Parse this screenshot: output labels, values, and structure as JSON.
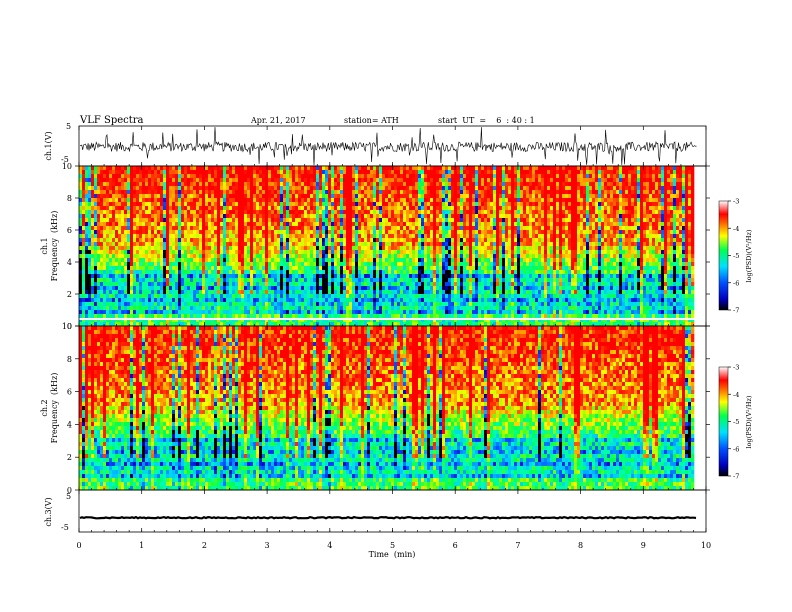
{
  "header": {
    "title": "VLF  Spectra",
    "date": "Apr. 21, 2017",
    "station": "station= ATH",
    "start_ut": "start  UT  =    6  : 40 : 1"
  },
  "chart_data": [
    {
      "type": "line",
      "panel": "ch1-waveform",
      "ylabel": "ch.1(V)",
      "ylim": [
        -5,
        5
      ],
      "yticks": [
        "5",
        "-5"
      ],
      "xlim": [
        0,
        10
      ],
      "x_data_end": 9.85,
      "series": [
        {
          "values_note_free": true,
          "mean": -0.2,
          "spread": 1.2,
          "spike_max": 4.8
        }
      ]
    },
    {
      "type": "heatmap",
      "panel": "ch1-spectrogram",
      "ylabel": "ch.1\nFrequency  (kHz)",
      "ylabel_line1": "ch.1",
      "ylabel_line2": "Frequency  (kHz)",
      "ylim": [
        0,
        10
      ],
      "yticks": [
        "0",
        "2",
        "4",
        "6",
        "8",
        "10"
      ],
      "xlim": [
        0,
        10
      ],
      "x_data_end": 9.85,
      "colorbar": {
        "label": "log(PSD)(V²/Hz)",
        "range": [
          -7,
          -3
        ],
        "ticks": [
          "-3",
          "-4",
          "-5",
          "-6",
          "-7"
        ],
        "colors": [
          "#000000",
          "#0000ff",
          "#00c8ff",
          "#00ff64",
          "#ffff00",
          "#ff0000",
          "#ffffff"
        ]
      }
    },
    {
      "type": "heatmap",
      "panel": "ch2-spectrogram",
      "ylabel_line1": "ch.2",
      "ylabel_line2": "Frequency  (kHz)",
      "ylim": [
        0,
        10
      ],
      "yticks": [
        "0",
        "2",
        "4",
        "6",
        "8",
        "10"
      ],
      "xlim": [
        0,
        10
      ],
      "x_data_end": 9.85,
      "colorbar": {
        "label": "log(PSD)(V²/Hz)",
        "range": [
          -7,
          -3
        ],
        "ticks": [
          "-3",
          "-4",
          "-5",
          "-6",
          "-7"
        ]
      }
    },
    {
      "type": "line",
      "panel": "ch3-waveform",
      "ylabel": "ch.3(V)",
      "ylim": [
        -5,
        5
      ],
      "yticks": [
        "5",
        "-5"
      ],
      "xlim": [
        0,
        10
      ],
      "x_data_end": 9.85,
      "series": [
        {
          "mean": -1.6,
          "spread": 0.15
        }
      ]
    }
  ],
  "xaxis": {
    "label": "Time  (min)",
    "ticks": [
      "0",
      "1",
      "2",
      "3",
      "4",
      "5",
      "6",
      "7",
      "8",
      "9",
      "10"
    ]
  }
}
